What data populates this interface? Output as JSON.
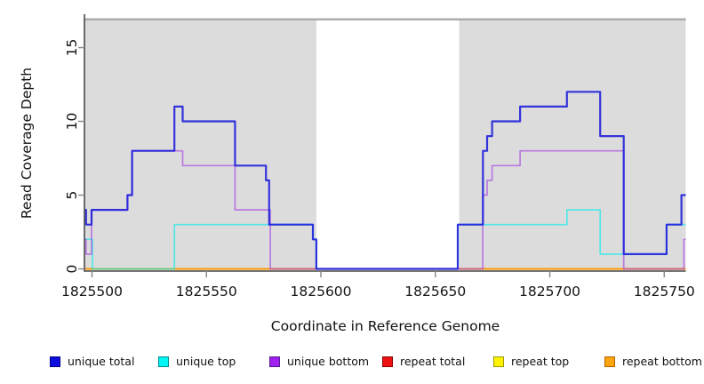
{
  "figure": {
    "xlabel": "Coordinate in Reference Genome",
    "ylabel": "Read Coverage Depth"
  },
  "chart_data": {
    "type": "line",
    "subtype": "step-coverage",
    "xlabel": "Coordinate in Reference Genome",
    "ylabel": "Read Coverage Depth",
    "xlim": [
      1825496.7,
      1825759.4
    ],
    "ylim": [
      0,
      17.02
    ],
    "x_ticks": [
      1825500,
      1825550,
      1825600,
      1825650,
      1825700,
      1825750
    ],
    "x_tick_labels": [
      "1825500",
      "1825550",
      "1825600",
      "1825650",
      "1825700",
      "1825750"
    ],
    "y_ticks": [
      0,
      5,
      10,
      15
    ],
    "y_tick_labels": [
      "0",
      "5",
      "10",
      "15"
    ],
    "grid": false,
    "legend_position": "bottom",
    "background": {
      "panel_color": "#dcdcdc",
      "top_line_color": "#999999",
      "gap_region": {
        "from": 1825598,
        "to": 1825660.4,
        "color": "#ffffff"
      }
    },
    "axis_colors": {
      "axis": "#4a4a4a",
      "tick": "#8c8c8c",
      "text": "#141414"
    },
    "draw_order": [
      "repeat total",
      "repeat top",
      "repeat bottom",
      "unique top",
      "unique bottom",
      "unique total"
    ],
    "series": [
      {
        "name": "unique total",
        "slug": "unique-total",
        "color": "rgba(32,32,218,0.9)",
        "width": 2.2,
        "legend_fill": "#0d0de0",
        "legend_border": "#000080",
        "steps": [
          [
            1825496.7,
            4
          ],
          [
            1825497.4,
            3
          ],
          [
            1825499.8,
            4
          ],
          [
            1825515.5,
            5
          ],
          [
            1825517.5,
            8
          ],
          [
            1825536,
            11
          ],
          [
            1825539.6,
            10
          ],
          [
            1825562.5,
            7
          ],
          [
            1825576,
            6
          ],
          [
            1825577.4,
            3
          ],
          [
            1825596.5,
            2
          ],
          [
            1825598,
            0
          ],
          [
            1825659.8,
            3
          ],
          [
            1825670.8,
            8
          ],
          [
            1825672.6,
            9
          ],
          [
            1825674.8,
            10
          ],
          [
            1825687,
            11
          ],
          [
            1825707.5,
            12
          ],
          [
            1825722,
            9
          ],
          [
            1825732.3,
            1
          ],
          [
            1825751,
            3
          ],
          [
            1825757.5,
            5
          ]
        ]
      },
      {
        "name": "unique top",
        "slug": "unique-top",
        "color": "rgba(0,235,235,0.62)",
        "width": 1.7,
        "legend_fill": "#00f5f5",
        "legend_border": "#008b8b",
        "steps": [
          [
            1825496.7,
            2
          ],
          [
            1825500.2,
            0
          ],
          [
            1825536,
            3
          ],
          [
            1825596.5,
            2
          ],
          [
            1825598,
            0
          ],
          [
            1825659.8,
            3
          ],
          [
            1825707.5,
            4
          ],
          [
            1825722,
            1
          ],
          [
            1825751,
            3
          ]
        ]
      },
      {
        "name": "unique bottom",
        "slug": "unique-bottom",
        "color": "rgba(160,50,230,0.58)",
        "width": 1.7,
        "legend_fill": "#a021f0",
        "legend_border": "#551a8b",
        "steps": [
          [
            1825496.7,
            2
          ],
          [
            1825497.4,
            1
          ],
          [
            1825499.8,
            4
          ],
          [
            1825515.5,
            5
          ],
          [
            1825517.5,
            8
          ],
          [
            1825539.6,
            7
          ],
          [
            1825562.5,
            4
          ],
          [
            1825577.9,
            0
          ],
          [
            1825670.7,
            5
          ],
          [
            1825672.6,
            6
          ],
          [
            1825674.8,
            7
          ],
          [
            1825687,
            8
          ],
          [
            1825732.3,
            0
          ],
          [
            1825758.6,
            2
          ]
        ]
      },
      {
        "name": "repeat total",
        "slug": "repeat-total",
        "color": "#e01010",
        "width": 1.6,
        "legend_fill": "#ee1111",
        "legend_border": "#8b0000",
        "steps": [
          [
            1825496.7,
            0
          ]
        ]
      },
      {
        "name": "repeat top",
        "slug": "repeat-top",
        "color": "#ffee00",
        "width": 1.6,
        "legend_fill": "#fff200",
        "legend_border": "#9a9a00",
        "steps": [
          [
            1825496.7,
            0
          ]
        ]
      },
      {
        "name": "repeat bottom",
        "slug": "repeat-bottom",
        "color": "#ff9900",
        "width": 1.8,
        "legend_fill": "#ffa510",
        "legend_border": "#b06000",
        "steps": [
          [
            1825496.7,
            0
          ]
        ]
      }
    ]
  }
}
